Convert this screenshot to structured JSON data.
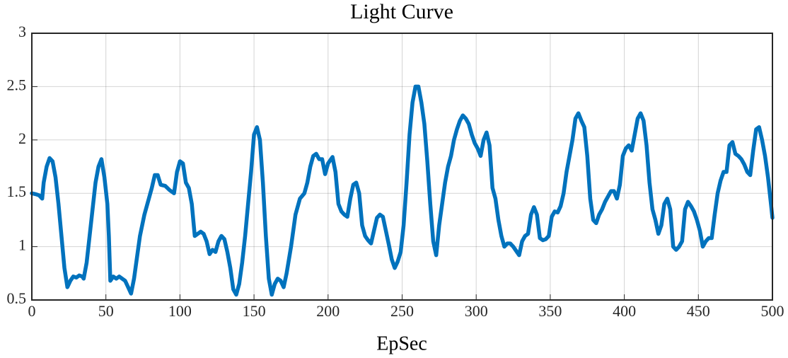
{
  "chart_data": {
    "type": "line",
    "title": "Light Curve",
    "xlabel": "EpSec",
    "color": "#0072bd",
    "grid": true,
    "xlim": [
      0,
      500
    ],
    "ylim": [
      0.5,
      3
    ],
    "xticks": [
      0,
      50,
      100,
      150,
      200,
      250,
      300,
      350,
      400,
      450,
      500
    ],
    "yticks": [
      0.5,
      1,
      1.5,
      2,
      2.5,
      3
    ],
    "x": [
      0,
      3,
      5,
      7,
      8,
      10,
      12,
      14,
      16,
      18,
      20,
      22,
      24,
      26,
      28,
      30,
      32,
      34,
      35,
      37,
      39,
      41,
      43,
      45,
      47,
      49,
      51,
      52,
      53,
      55,
      57,
      59,
      61,
      63,
      65,
      67,
      69,
      71,
      73,
      76,
      79,
      81,
      83,
      85,
      87,
      90,
      93,
      96,
      98,
      100,
      102,
      104,
      106,
      108,
      110,
      112,
      114,
      116,
      118,
      120,
      122,
      124,
      126,
      128,
      130,
      132,
      134,
      136,
      138,
      140,
      142,
      144,
      146,
      148,
      150,
      152,
      154,
      156,
      158,
      160,
      162,
      164,
      166,
      168,
      170,
      172,
      175,
      178,
      181,
      184,
      186,
      188,
      190,
      192,
      194,
      196,
      198,
      200,
      203,
      205,
      207,
      209,
      211,
      213,
      215,
      217,
      219,
      221,
      223,
      225,
      227,
      229,
      231,
      233,
      235,
      237,
      239,
      241,
      243,
      245,
      247,
      249,
      251,
      253,
      255,
      257,
      259,
      261,
      263,
      265,
      267,
      269,
      271,
      273,
      275,
      277,
      279,
      281,
      283,
      285,
      287,
      289,
      291,
      293,
      295,
      297,
      299,
      301,
      303,
      305,
      307,
      309,
      311,
      313,
      315,
      317,
      319,
      321,
      323,
      325,
      327,
      329,
      331,
      333,
      335,
      337,
      339,
      341,
      343,
      345,
      347,
      349,
      351,
      353,
      355,
      357,
      359,
      361,
      363,
      365,
      367,
      369,
      371,
      373,
      375,
      377,
      379,
      381,
      383,
      385,
      387,
      389,
      391,
      393,
      395,
      397,
      399,
      401,
      403,
      405,
      407,
      409,
      411,
      413,
      415,
      417,
      419,
      421,
      423,
      425,
      427,
      429,
      431,
      433,
      435,
      437,
      439,
      441,
      443,
      445,
      447,
      449,
      451,
      453,
      455,
      457,
      459,
      461,
      463,
      465,
      467,
      469,
      471,
      473,
      475,
      477,
      479,
      481,
      483,
      485,
      487,
      489,
      491,
      493,
      495,
      497,
      499,
      500
    ],
    "values": [
      1.5,
      1.49,
      1.48,
      1.45,
      1.6,
      1.75,
      1.83,
      1.8,
      1.65,
      1.4,
      1.1,
      0.8,
      0.62,
      0.68,
      0.72,
      0.71,
      0.73,
      0.72,
      0.7,
      0.85,
      1.1,
      1.35,
      1.6,
      1.75,
      1.82,
      1.65,
      1.4,
      1.1,
      0.68,
      0.72,
      0.7,
      0.72,
      0.7,
      0.68,
      0.62,
      0.56,
      0.7,
      0.9,
      1.1,
      1.3,
      1.45,
      1.55,
      1.67,
      1.67,
      1.58,
      1.57,
      1.53,
      1.5,
      1.7,
      1.8,
      1.78,
      1.6,
      1.55,
      1.4,
      1.1,
      1.12,
      1.14,
      1.12,
      1.05,
      0.93,
      0.97,
      0.95,
      1.05,
      1.1,
      1.07,
      0.95,
      0.8,
      0.6,
      0.55,
      0.65,
      0.85,
      1.1,
      1.4,
      1.7,
      2.05,
      2.12,
      2.0,
      1.6,
      1.1,
      0.7,
      0.55,
      0.65,
      0.7,
      0.68,
      0.62,
      0.75,
      1.0,
      1.3,
      1.45,
      1.5,
      1.6,
      1.75,
      1.85,
      1.87,
      1.82,
      1.82,
      1.68,
      1.78,
      1.84,
      1.7,
      1.4,
      1.33,
      1.3,
      1.28,
      1.45,
      1.58,
      1.6,
      1.5,
      1.2,
      1.1,
      1.06,
      1.03,
      1.15,
      1.27,
      1.3,
      1.28,
      1.15,
      1.02,
      0.88,
      0.8,
      0.86,
      0.95,
      1.2,
      1.6,
      2.05,
      2.35,
      2.5,
      2.5,
      2.35,
      2.15,
      1.8,
      1.4,
      1.05,
      0.92,
      1.2,
      1.4,
      1.6,
      1.75,
      1.85,
      2.0,
      2.1,
      2.18,
      2.23,
      2.2,
      2.15,
      2.05,
      1.97,
      1.92,
      1.85,
      2.0,
      2.07,
      1.95,
      1.55,
      1.45,
      1.25,
      1.1,
      1.0,
      1.03,
      1.03,
      1.0,
      0.96,
      0.92,
      1.05,
      1.1,
      1.12,
      1.3,
      1.37,
      1.3,
      1.08,
      1.06,
      1.07,
      1.1,
      1.28,
      1.33,
      1.32,
      1.38,
      1.5,
      1.7,
      1.85,
      2.0,
      2.2,
      2.25,
      2.18,
      2.12,
      1.85,
      1.45,
      1.25,
      1.22,
      1.3,
      1.35,
      1.42,
      1.47,
      1.52,
      1.52,
      1.45,
      1.58,
      1.85,
      1.92,
      1.95,
      1.9,
      2.05,
      2.2,
      2.25,
      2.18,
      1.95,
      1.6,
      1.35,
      1.25,
      1.12,
      1.2,
      1.4,
      1.45,
      1.35,
      1.0,
      0.97,
      1.0,
      1.05,
      1.35,
      1.42,
      1.38,
      1.33,
      1.25,
      1.15,
      1.0,
      1.05,
      1.08,
      1.08,
      1.3,
      1.5,
      1.62,
      1.7,
      1.7,
      1.95,
      1.98,
      1.87,
      1.85,
      1.82,
      1.77,
      1.7,
      1.67,
      1.9,
      2.1,
      2.12,
      2.0,
      1.85,
      1.65,
      1.4,
      1.27
    ]
  }
}
